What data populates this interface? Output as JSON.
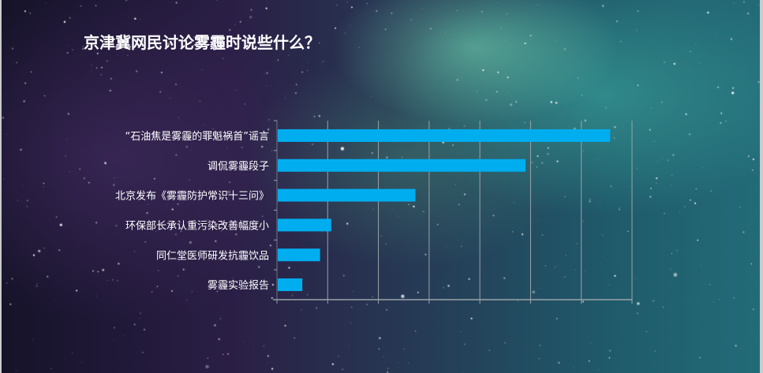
{
  "title": "京津冀网民讨论雾霾时说些什么？",
  "chart_data": {
    "type": "bar",
    "orientation": "horizontal",
    "title": "京津冀网民讨论雾霾时说些什么？",
    "categories": [
      "“石油焦是雾霾的罪魁祸首”谣言",
      "调侃雾霾段子",
      "北京发布《雾霾防护常识十三问》",
      "环保部长承认重污染改善幅度小",
      "同仁堂医师研发抗霾饮品",
      "雾霾实验报告"
    ],
    "values": [
      6.57,
      4.9,
      2.73,
      1.07,
      0.85,
      0.5
    ],
    "xlim": [
      0,
      7
    ],
    "grid": true,
    "tick_labels_shown": false,
    "bar_color": "#00aeef",
    "grid_color": "#9aa3a8"
  }
}
